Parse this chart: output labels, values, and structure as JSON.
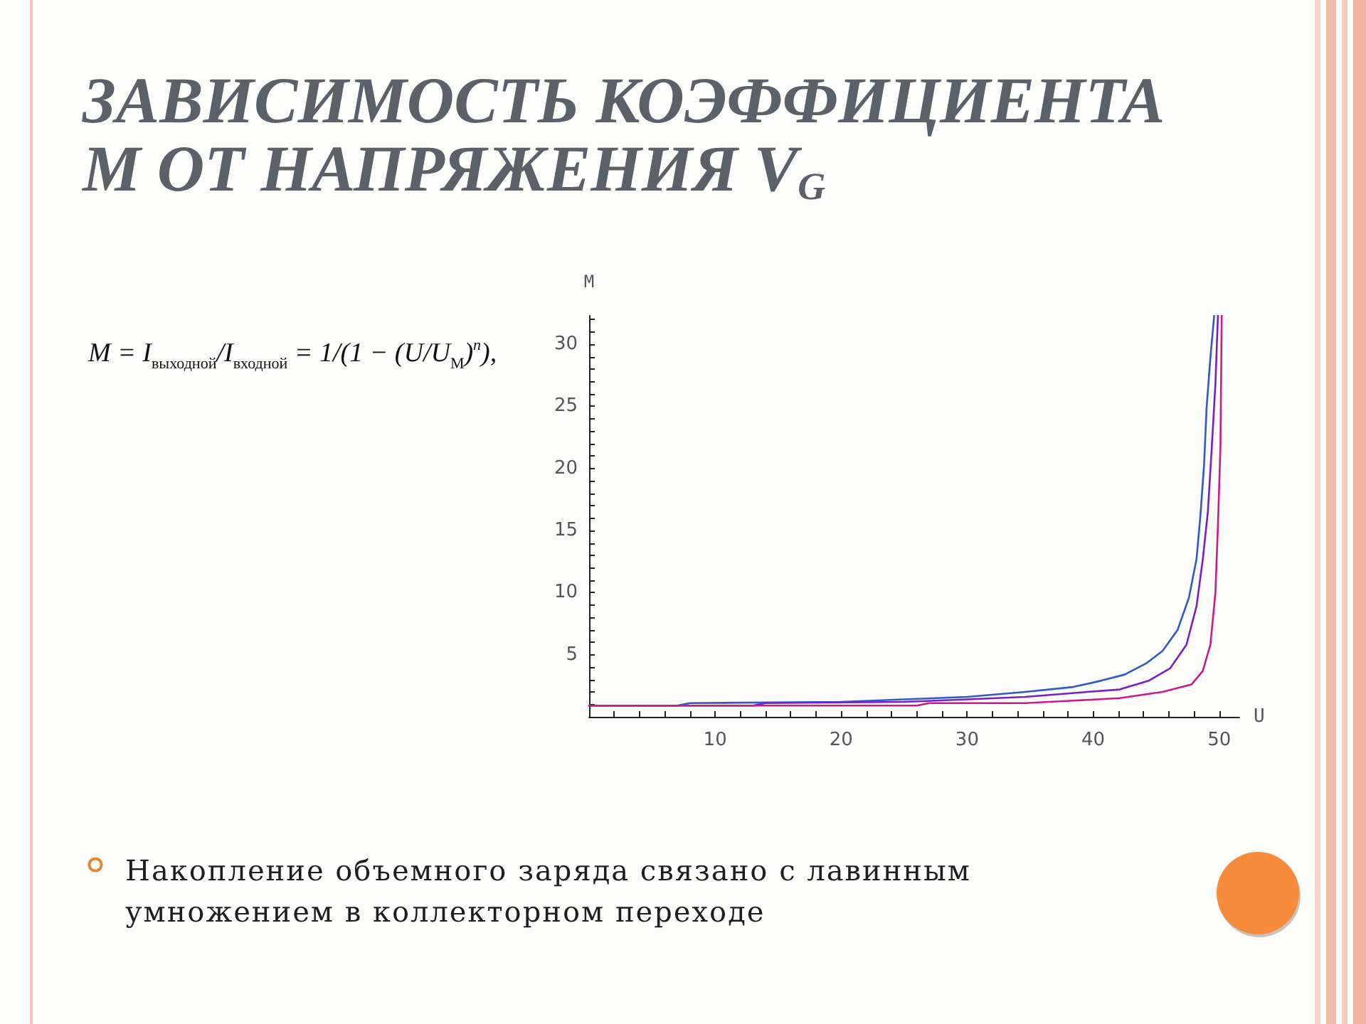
{
  "chart_data": {
    "type": "line",
    "title": "ЗАВИСИМОСТЬ КОЭФФИЦИЕНТА M ОТ НАПРЯЖЕНИЯ V$_{G}$",
    "xlabel": "U",
    "ylabel": "M",
    "annotations": [
      "M = I$_{выходной}$/I$_{входной}$ = 1/(1 − (U/U$_{М}$)$^{n}$),",
      "Накопление объемного заряда связано с лавинным умножением в коллекторном переходе"
    ],
    "series": [
      {
        "color": "#2f58c8",
        "x": [
          0,
          7,
          8,
          20,
          25,
          30,
          34.6,
          38.4,
          40.6,
          42.5,
          44.2,
          45.5,
          46.7,
          47.6,
          48.2,
          48.5,
          48.8,
          49.0,
          49.3,
          49.6
        ],
        "values": [
          0.9,
          0.9,
          1.1,
          1.2,
          1.4,
          1.6,
          2.0,
          2.4,
          2.9,
          3.4,
          4.3,
          5.3,
          7.0,
          9.6,
          12.7,
          16.1,
          20.3,
          24.9,
          28.9,
          32.3
        ]
      },
      {
        "color": "#7a1fc8",
        "x": [
          0,
          13,
          14,
          25,
          30,
          34.6,
          39.5,
          42.1,
          44.4,
          46.1,
          47.4,
          48.2,
          48.7,
          49.1,
          49.4,
          49.7,
          49.9
        ],
        "values": [
          0.9,
          0.9,
          1.1,
          1.2,
          1.4,
          1.6,
          2.0,
          2.2,
          2.9,
          3.9,
          5.8,
          8.9,
          12.7,
          16.5,
          21.5,
          26.8,
          32.3
        ]
      },
      {
        "color": "#cc1a8c",
        "x": [
          0,
          26,
          27,
          34.6,
          38.4,
          42.1,
          45.5,
          47.8,
          48.7,
          49.3,
          49.7,
          49.9,
          50.1,
          50.2
        ],
        "values": [
          0.9,
          0.9,
          1.1,
          1.1,
          1.3,
          1.5,
          2.0,
          2.6,
          3.7,
          5.8,
          10.0,
          15.4,
          21.8,
          32.3
        ]
      }
    ],
    "xlim": [
      0,
      51.6
    ],
    "ylim": [
      0,
      32.3
    ],
    "xticks": [
      {
        "value": 2,
        "label": null
      },
      {
        "value": 4,
        "label": null
      },
      {
        "value": 6,
        "label": null
      },
      {
        "value": 8,
        "label": null
      },
      10,
      {
        "value": 12,
        "label": null
      },
      {
        "value": 14,
        "label": null
      },
      {
        "value": 16,
        "label": null
      },
      {
        "value": 18,
        "label": null
      },
      20,
      {
        "value": 22,
        "label": null
      },
      {
        "value": 24,
        "label": null
      },
      {
        "value": 26,
        "label": null
      },
      {
        "value": 28,
        "label": null
      },
      30,
      {
        "value": 32,
        "label": null
      },
      {
        "value": 34,
        "label": null
      },
      {
        "value": 36,
        "label": null
      },
      {
        "value": 38,
        "label": null
      },
      40,
      {
        "value": 42,
        "label": null
      },
      {
        "value": 44,
        "label": null
      },
      {
        "value": 46,
        "label": null
      },
      {
        "value": 48,
        "label": null
      },
      50
    ],
    "yticks": [
      {
        "value": 1,
        "label": null
      },
      {
        "value": 2,
        "label": null
      },
      {
        "value": 3,
        "label": null
      },
      {
        "value": 4,
        "label": null
      },
      5,
      {
        "value": 6,
        "label": null
      },
      {
        "value": 7,
        "label": null
      },
      {
        "value": 8,
        "label": null
      },
      {
        "value": 9,
        "label": null
      },
      10,
      {
        "value": 11,
        "label": null
      },
      {
        "value": 12,
        "label": null
      },
      {
        "value": 13,
        "label": null
      },
      {
        "value": 14,
        "label": null
      },
      15,
      {
        "value": 16,
        "label": null
      },
      {
        "value": 17,
        "label": null
      },
      {
        "value": 18,
        "label": null
      },
      {
        "value": 19,
        "label": null
      },
      20,
      {
        "value": 21,
        "label": null
      },
      {
        "value": 22,
        "label": null
      },
      {
        "value": 23,
        "label": null
      },
      {
        "value": 24,
        "label": null
      },
      25,
      {
        "value": 26,
        "label": null
      },
      {
        "value": 27,
        "label": null
      },
      {
        "value": 28,
        "label": null
      },
      {
        "value": 29,
        "label": null
      },
      30,
      {
        "value": 31,
        "label": null
      },
      {
        "value": 32,
        "label": null
      }
    ]
  }
}
